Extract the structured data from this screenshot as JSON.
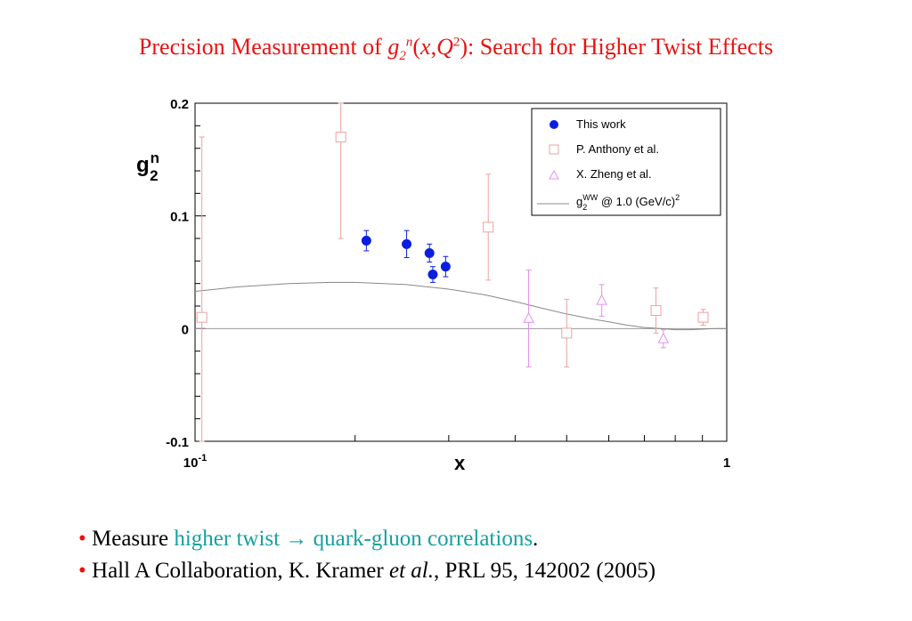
{
  "title": {
    "prefix": "Precision Measurement of ",
    "g": "g",
    "sub2": "2",
    "supn": "n",
    "paren_open": "(",
    "x": "x",
    "comma": ",",
    "Q": "Q",
    "sup2": "2",
    "suffix": "): Search for Higher Twist Effects"
  },
  "colors": {
    "title": "#e8130e",
    "this_work": "#0a1ee0",
    "anthony": "#f0a0a0",
    "zheng": "#e090f0",
    "curve": "#888888",
    "teal": "#16a0a0"
  },
  "chart_data": {
    "type": "scatter",
    "xlabel": "x",
    "ylabel": "g2n",
    "ylabel_main": "g",
    "ylabel_sup": "n",
    "ylabel_sub": "2",
    "xscale": "log",
    "xlim": [
      0.1,
      1.0
    ],
    "ylim": [
      -0.1,
      0.2
    ],
    "x_tick_labels": [
      {
        "base": "10",
        "exp": "-1",
        "value": 0.1
      },
      {
        "base": "1",
        "exp": "",
        "value": 1.0
      }
    ],
    "y_tick_labels": [
      "0.2",
      "0.1",
      "0",
      "-0.1"
    ],
    "y_tick_values": [
      0.2,
      0.1,
      0,
      -0.1
    ],
    "legend_position": "top-right",
    "series": [
      {
        "name": "This work",
        "marker": "filled-circle",
        "points": [
          {
            "x": 0.21,
            "y": 0.078,
            "err": 0.009
          },
          {
            "x": 0.25,
            "y": 0.075,
            "err": 0.012
          },
          {
            "x": 0.276,
            "y": 0.067,
            "err": 0.008
          },
          {
            "x": 0.28,
            "y": 0.048,
            "err": 0.007
          },
          {
            "x": 0.296,
            "y": 0.055,
            "err": 0.009
          }
        ]
      },
      {
        "name": "P. Anthony et al.",
        "marker": "open-square",
        "points": [
          {
            "x": 0.103,
            "y": 0.01,
            "err": 0.16
          },
          {
            "x": 0.188,
            "y": 0.17,
            "err": 0.09
          },
          {
            "x": 0.356,
            "y": 0.09,
            "err": 0.047
          },
          {
            "x": 0.5,
            "y": -0.004,
            "err": 0.03
          },
          {
            "x": 0.736,
            "y": 0.016,
            "err": 0.02
          },
          {
            "x": 0.903,
            "y": 0.01,
            "err": 0.007
          }
        ]
      },
      {
        "name": "X. Zheng et al.",
        "marker": "open-triangle",
        "points": [
          {
            "x": 0.424,
            "y": 0.009,
            "err": 0.043
          },
          {
            "x": 0.582,
            "y": 0.025,
            "err": 0.014
          },
          {
            "x": 0.76,
            "y": -0.009,
            "err": 0.008
          }
        ]
      }
    ],
    "curve": {
      "name_main": "g",
      "name_sup": "WW",
      "name_sub": "2",
      "name_suffix": " @ 1.0 (GeV/c)",
      "name_suffix_sup": "2",
      "x": [
        0.1,
        0.12,
        0.15,
        0.18,
        0.2,
        0.25,
        0.3,
        0.35,
        0.4,
        0.45,
        0.5,
        0.55,
        0.6,
        0.65,
        0.7,
        0.75,
        0.8,
        0.85,
        0.9,
        0.95,
        1.0
      ],
      "y": [
        0.033,
        0.037,
        0.04,
        0.041,
        0.041,
        0.039,
        0.035,
        0.03,
        0.024,
        0.018,
        0.013,
        0.009,
        0.006,
        0.003,
        0.001,
        0.0,
        -0.001,
        -0.001,
        -0.0005,
        0.0,
        0.0
      ]
    }
  },
  "bullets": {
    "b1_dot": "•",
    "b1_text1": "Measure ",
    "b1_teal1": "higher twist ",
    "b1_arrow": "→",
    "b1_teal2": " quark-gluon correlations",
    "b1_end": ".",
    "b2_dot": "•",
    "b2_text1": "Hall A Collaboration, K. Kramer ",
    "b2_italic": "et al.",
    "b2_text2": ",  PRL 95, 142002 (2005)"
  }
}
